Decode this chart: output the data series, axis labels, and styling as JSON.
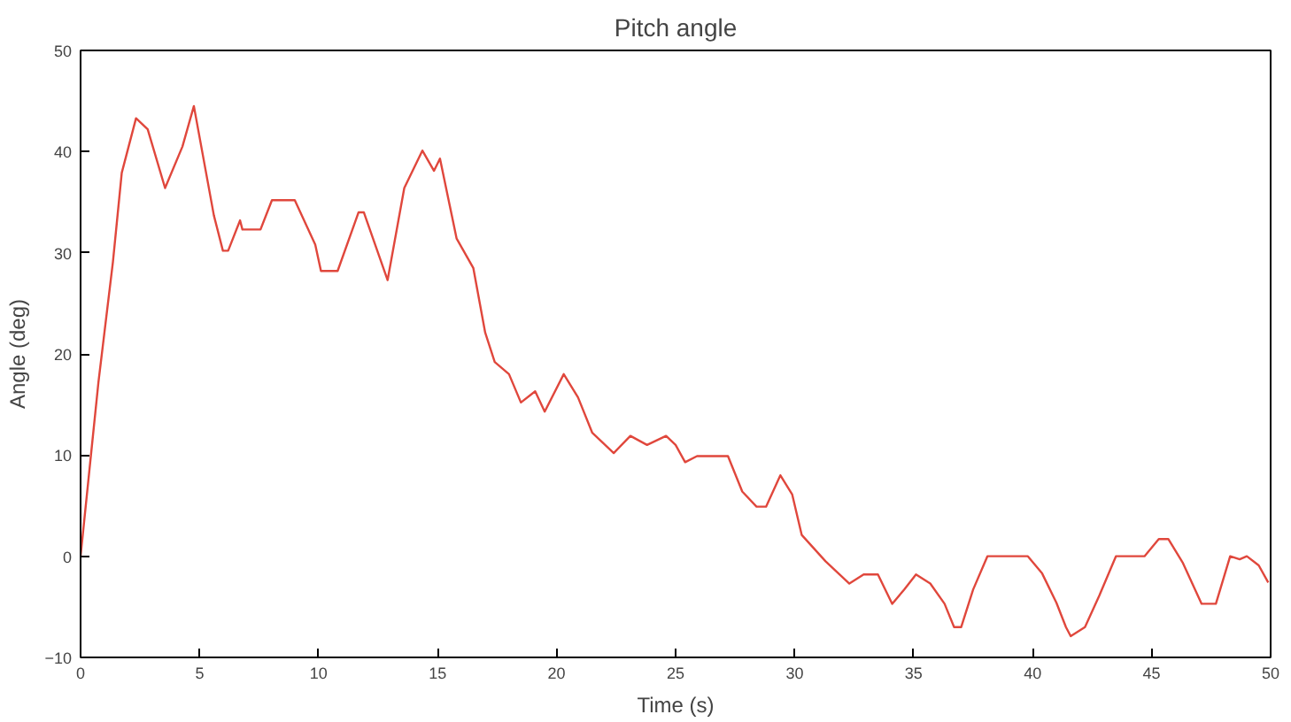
{
  "chart_data": {
    "type": "line",
    "title": "Pitch angle",
    "xlabel": "Time (s)",
    "ylabel": "Angle (deg)",
    "xlim": [
      0,
      50
    ],
    "xticks": [
      0,
      5,
      10,
      15,
      20,
      25,
      30,
      35,
      40,
      45,
      50
    ],
    "ylim": [
      -10,
      50
    ],
    "yticks": [
      -10,
      0,
      10,
      20,
      30,
      40,
      50
    ],
    "grid": false,
    "marker": "none",
    "line_style": "solid",
    "series": [
      {
        "color": "#e0473c",
        "x": [
          0,
          0.75,
          1.36,
          1.73,
          2.33,
          2.82,
          3.55,
          4.28,
          4.76,
          5.6,
          5.98,
          6.2,
          6.7,
          6.8,
          7.56,
          8.04,
          9.0,
          9.86,
          10.1,
          10.8,
          11.68,
          11.9,
          12.9,
          13.6,
          14.36,
          14.85,
          15.1,
          15.8,
          16.5,
          17.0,
          17.4,
          18.0,
          18.5,
          19.1,
          19.5,
          20.3,
          20.9,
          21.5,
          22.4,
          23.1,
          23.8,
          24.6,
          25.0,
          25.4,
          25.9,
          27.2,
          27.8,
          28.4,
          28.8,
          29.4,
          29.9,
          30.3,
          31.3,
          32.3,
          32.9,
          33.5,
          34.1,
          34.6,
          35.1,
          35.7,
          36.3,
          36.7,
          37.0,
          37.5,
          38.1,
          39.8,
          40.4,
          41.0,
          41.4,
          41.6,
          42.2,
          42.8,
          43.5,
          44.7,
          45.3,
          45.7,
          46.3,
          47.1,
          47.7,
          48.3,
          48.7,
          49.0,
          49.5,
          49.9
        ],
        "values": [
          0,
          17.2,
          29.1,
          37.9,
          43.3,
          42.2,
          36.4,
          40.5,
          44.5,
          33.7,
          30.2,
          30.2,
          33.2,
          32.3,
          32.3,
          35.2,
          35.2,
          30.8,
          28.2,
          28.2,
          34,
          34,
          27.3,
          36.4,
          40.1,
          38.1,
          39.3,
          31.4,
          28.5,
          22.1,
          19.2,
          18,
          15.2,
          16.3,
          14.3,
          18,
          15.7,
          12.2,
          10.2,
          11.9,
          11,
          11.9,
          11,
          9.3,
          9.9,
          9.9,
          6.4,
          4.9,
          4.9,
          8,
          6.1,
          2.1,
          -0.5,
          -2.7,
          -1.8,
          -1.8,
          -4.7,
          -3.3,
          -1.8,
          -2.7,
          -4.7,
          -7,
          -7,
          -3.3,
          0,
          0,
          -1.7,
          -4.6,
          -7,
          -7.9,
          -7,
          -3.9,
          0,
          0,
          1.7,
          1.7,
          -0.6,
          -4.7,
          -4.7,
          0,
          -0.3,
          0,
          -0.9,
          -2.6
        ]
      }
    ]
  }
}
